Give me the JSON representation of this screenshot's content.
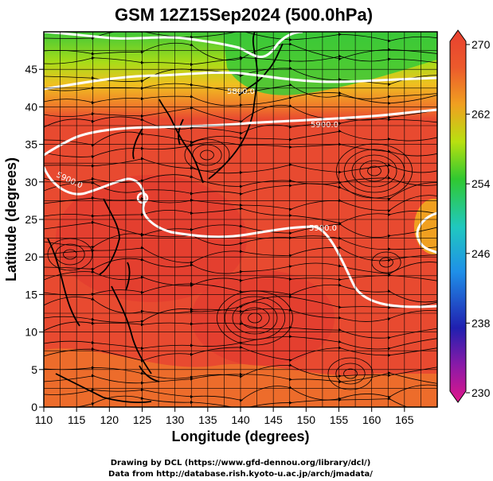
{
  "title": "GSM 12Z15Sep2024 (500.0hPa)",
  "xlabel": "Longitude (degrees)",
  "ylabel": "Latitude  (degrees)",
  "credits": [
    "Drawing by DCL (https://www.gfd-dennou.org/library/dcl/)",
    "Data from http://database.rish.kyoto-u.ac.jp/arch/jmadata/"
  ],
  "chart_data": {
    "type": "heatmap",
    "title": "GSM 12Z15Sep2024 (500.0hPa)",
    "xlabel": "Longitude (degrees)",
    "ylabel": "Latitude  (degrees)",
    "xlim": [
      110,
      170
    ],
    "ylim": [
      0,
      50
    ],
    "x_ticks": [
      "110",
      "115",
      "120",
      "125",
      "130",
      "135",
      "140",
      "145",
      "150",
      "155",
      "160",
      "165"
    ],
    "y_ticks": [
      "0",
      "5",
      "10",
      "15",
      "20",
      "25",
      "30",
      "35",
      "40",
      "45"
    ],
    "colorbar": {
      "range": [
        230,
        270
      ],
      "tick_labels": [
        "270",
        "262",
        "254",
        "246",
        "238",
        "230"
      ],
      "colors": [
        "#e0168a",
        "#2020b0",
        "#1f8fe8",
        "#20c8c0",
        "#30c830",
        "#b8e010",
        "#f0a020",
        "#ec5a2c",
        "#e84030"
      ]
    },
    "contours": [
      {
        "label": "5900.0"
      },
      {
        "label": "5800.0"
      },
      {
        "label": "5700.0"
      }
    ],
    "grid": true,
    "field_colors": {
      "warm": "#e84a30",
      "hot": "#e23a2f",
      "orange": "#f07a2a",
      "yellow": "#e8c020",
      "green": "#3cc83c"
    }
  }
}
